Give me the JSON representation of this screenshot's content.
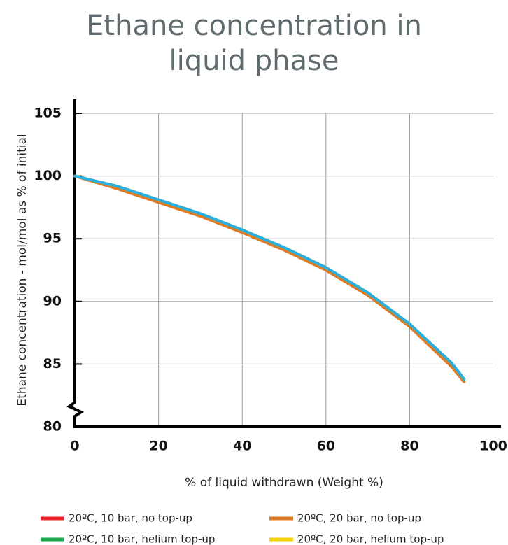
{
  "chart_data": {
    "type": "line",
    "title": "Ethane concentration in liquid phase",
    "x_label": "% of liquid withdrawn (Weight %)",
    "y_label": "Ethane concentration - mol/mol as % of initial",
    "x": [
      0,
      10,
      20,
      30,
      40,
      50,
      60,
      70,
      80,
      90,
      93
    ],
    "series": [
      {
        "name": "20ºC, 10 bar, no top-up",
        "color": "#e8262a",
        "values": [
          100,
          99.0,
          97.9,
          96.8,
          95.5,
          94.1,
          92.5,
          90.5,
          88.0,
          84.8,
          83.6
        ]
      },
      {
        "name": "20ºC, 20 bar, no top-up",
        "color": "#e07b22",
        "values": [
          100,
          99.0,
          97.9,
          96.8,
          95.5,
          94.1,
          92.5,
          90.5,
          88.0,
          84.8,
          83.6
        ]
      },
      {
        "name": "20ºC, 10 bar, helium top-up",
        "color": "#1aa64a",
        "values": [
          100,
          99.2,
          98.1,
          97.0,
          95.7,
          94.3,
          92.7,
          90.7,
          88.2,
          85.1,
          83.8
        ]
      },
      {
        "name": "20ºC, 20 bar, helium top-up",
        "color": "#f5d10c",
        "values": [
          100,
          99.2,
          98.1,
          97.0,
          95.7,
          94.3,
          92.7,
          90.7,
          88.2,
          85.1,
          83.8
        ]
      },
      {
        "color": "#2aaee0",
        "values": [
          100,
          99.2,
          98.1,
          97.0,
          95.7,
          94.3,
          92.7,
          90.7,
          88.2,
          85.1,
          83.8
        ]
      }
    ],
    "xlim": [
      0,
      100
    ],
    "xticks": [
      0,
      20,
      40,
      60,
      80,
      100
    ],
    "ylim": [
      80,
      105
    ],
    "yticks": [
      80,
      85,
      90,
      95,
      100,
      105
    ],
    "grid": true
  }
}
